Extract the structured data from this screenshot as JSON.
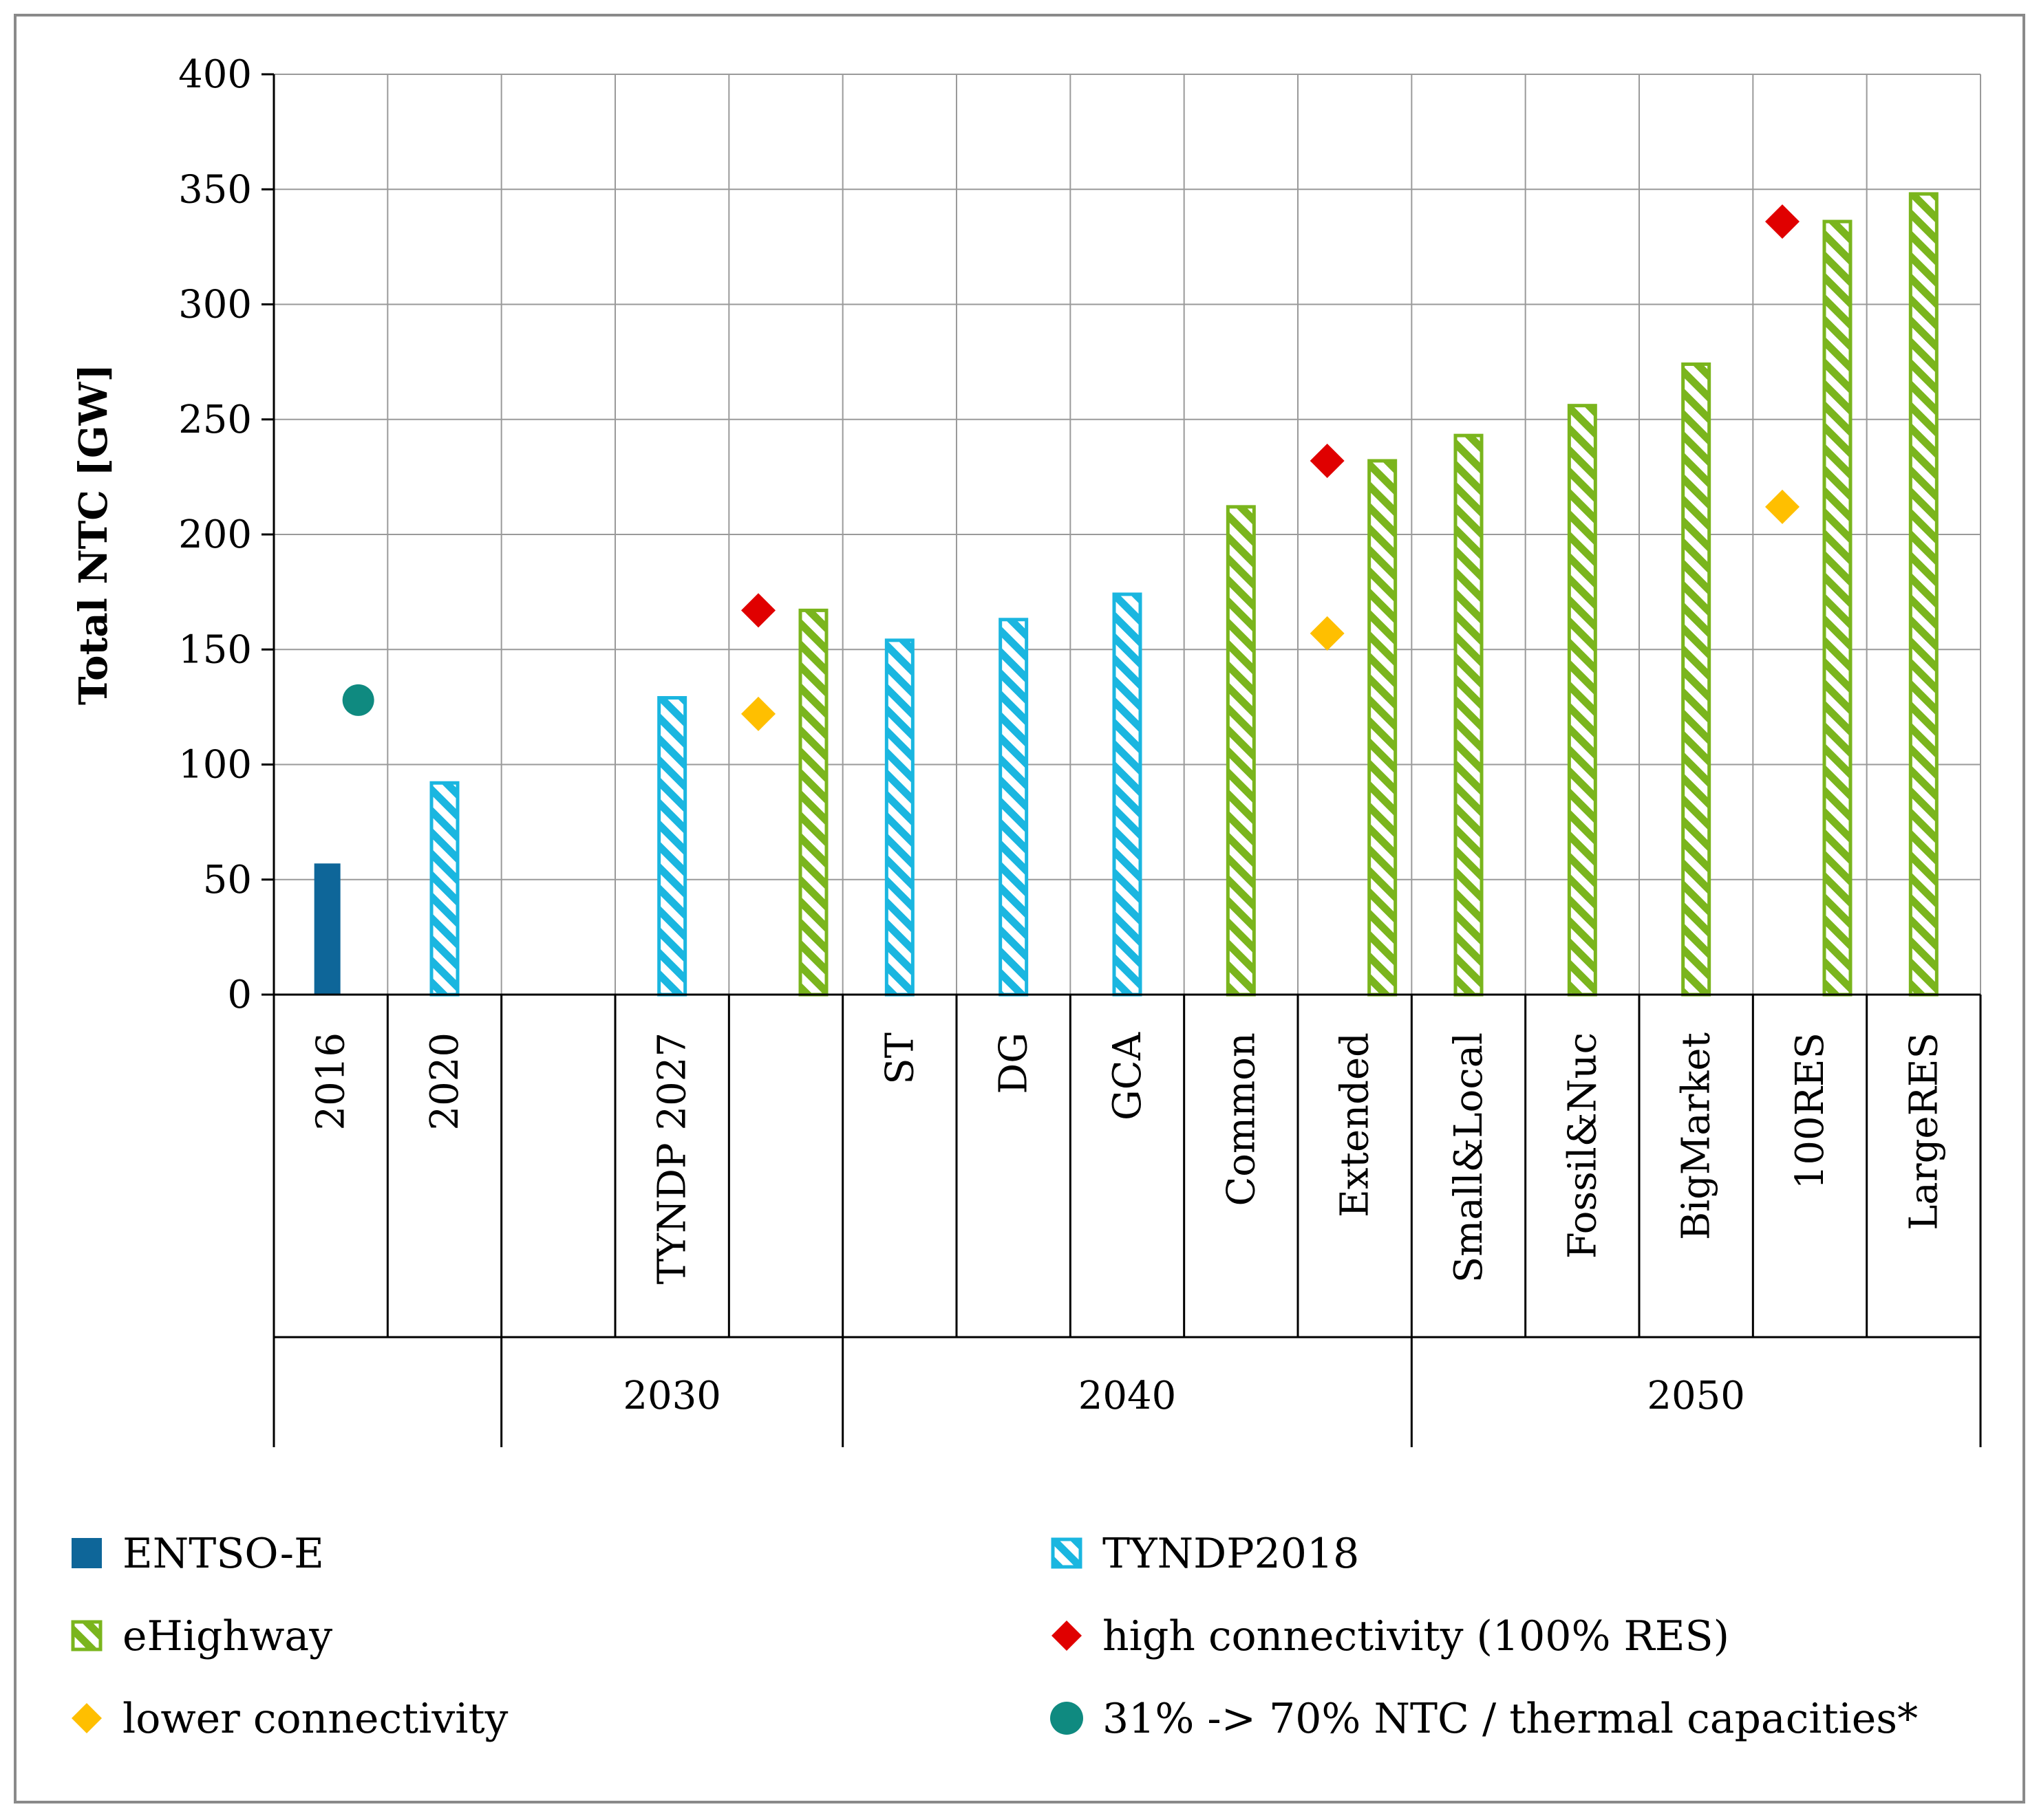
{
  "chart_data": {
    "type": "bar",
    "title": "",
    "ylabel": "Total NTC [GW]",
    "xlabel": "",
    "ylim": [
      0,
      400
    ],
    "yticks": [
      0,
      50,
      100,
      150,
      200,
      250,
      300,
      350,
      400
    ],
    "grid": true,
    "categories": [
      "2016",
      "2020",
      "",
      "TYNDP 2027",
      "",
      "ST",
      "DG",
      "GCA",
      "Common",
      "Extended",
      "Small&Local",
      "Fossil&Nuc",
      "BigMarket",
      "100RES",
      "LargeRES"
    ],
    "groups": [
      {
        "label": "",
        "start": 0,
        "end": 1
      },
      {
        "label": "2030",
        "start": 2,
        "end": 4
      },
      {
        "label": "2040",
        "start": 5,
        "end": 9
      },
      {
        "label": "2050",
        "start": 10,
        "end": 14
      }
    ],
    "series": [
      {
        "name": "ENTSO-E",
        "color": "#0e6699",
        "style": "solid",
        "values": [
          57,
          null,
          null,
          null,
          null,
          null,
          null,
          null,
          null,
          null,
          null,
          null,
          null,
          null,
          null
        ]
      },
      {
        "name": "TYNDP2018",
        "color": "#1ab6e0",
        "style": "hatched",
        "values": [
          null,
          92,
          null,
          129,
          null,
          154,
          163,
          174,
          null,
          null,
          null,
          null,
          null,
          null,
          null
        ]
      },
      {
        "name": "eHighway",
        "color": "#7ab51d",
        "style": "hatched",
        "values": [
          null,
          null,
          null,
          null,
          167,
          null,
          null,
          null,
          212,
          232,
          243,
          256,
          274,
          336,
          348
        ]
      },
      {
        "name": "high connectivity (100% RES)",
        "color": "#e00000",
        "marker": "diamond",
        "values": [
          null,
          null,
          null,
          null,
          167,
          null,
          null,
          null,
          null,
          232,
          null,
          null,
          null,
          336,
          null
        ]
      },
      {
        "name": "lower connectivity",
        "color": "#ffbf00",
        "marker": "diamond",
        "values": [
          null,
          null,
          null,
          null,
          122,
          null,
          null,
          null,
          null,
          157,
          null,
          null,
          null,
          212,
          null
        ]
      },
      {
        "name": "31% -> 70% NTC / thermal capacities*",
        "color": "#0f8a80",
        "marker": "circle",
        "values": [
          128,
          null,
          null,
          null,
          null,
          null,
          null,
          null,
          null,
          null,
          null,
          null,
          null,
          null,
          null
        ]
      }
    ],
    "legend": {
      "placement": "bottom",
      "entries": [
        {
          "label": "ENTSO-E",
          "icon": "solid-square",
          "color": "#0e6699"
        },
        {
          "label": "TYNDP2018",
          "icon": "hatched-square",
          "color": "#1ab6e0"
        },
        {
          "label": "eHighway",
          "icon": "hatched-square",
          "color": "#7ab51d"
        },
        {
          "label": "high connectivity (100% RES)",
          "icon": "diamond",
          "color": "#e00000"
        },
        {
          "label": "lower connectivity",
          "icon": "diamond",
          "color": "#ffbf00"
        },
        {
          "label": "31% -> 70% NTC / thermal capacities*",
          "icon": "circle",
          "color": "#0f8a80"
        }
      ]
    }
  }
}
